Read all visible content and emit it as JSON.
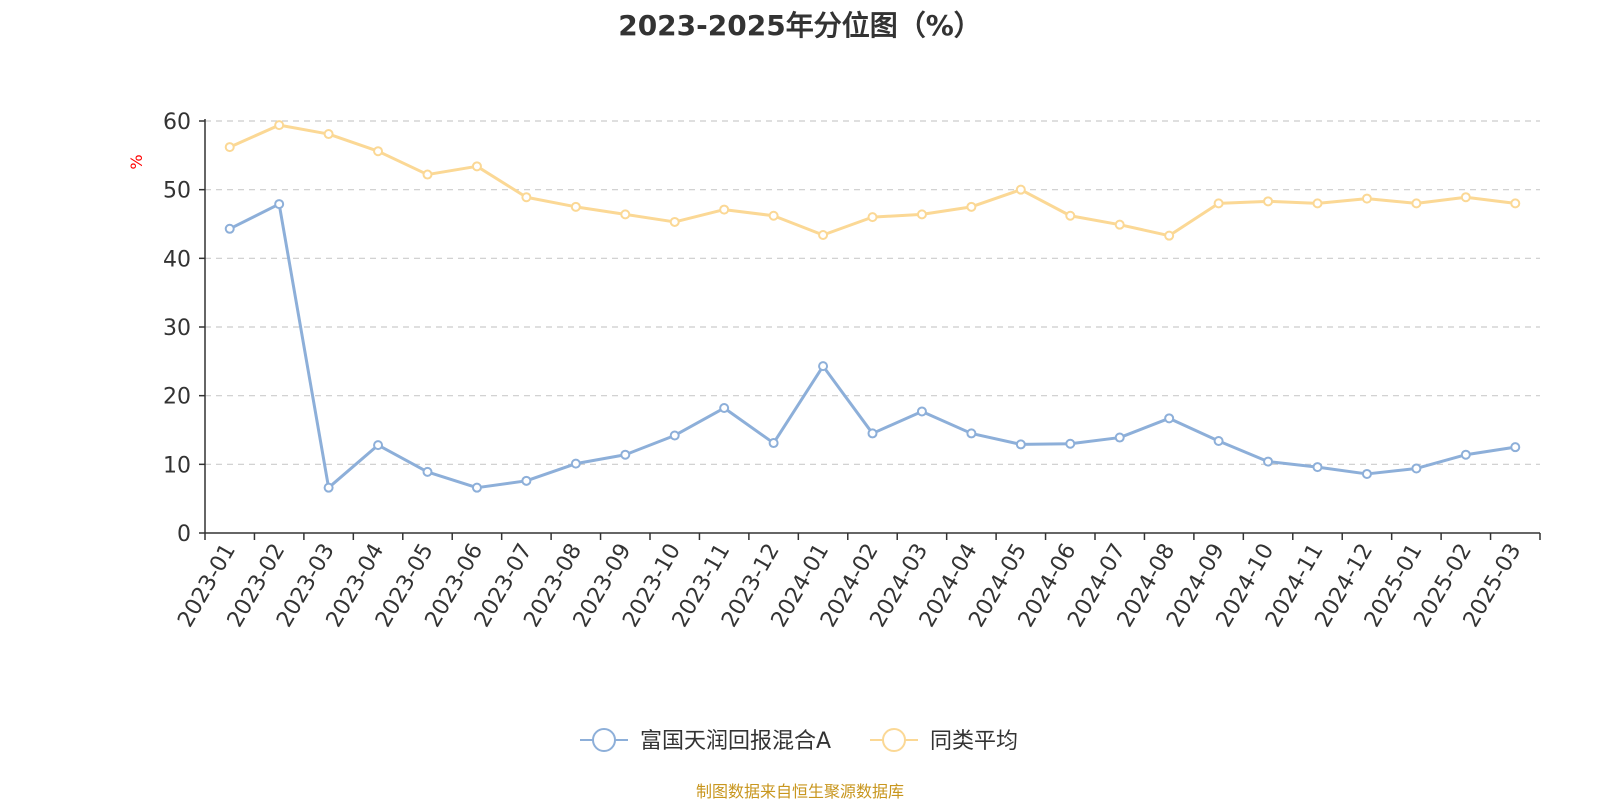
{
  "chart_data": {
    "type": "line",
    "title": "2023-2025年分位图（%）",
    "ylabel": "%",
    "ylim": [
      0,
      60
    ],
    "yticks": [
      "0",
      "10",
      "20",
      "30",
      "40",
      "50",
      "60"
    ],
    "grid": true,
    "legend_position": "bottom",
    "categories": [
      "2023-01",
      "2023-02",
      "2023-03",
      "2023-04",
      "2023-05",
      "2023-06",
      "2023-07",
      "2023-08",
      "2023-09",
      "2023-10",
      "2023-11",
      "2023-12",
      "2024-01",
      "2024-02",
      "2024-03",
      "2024-04",
      "2024-05",
      "2024-06",
      "2024-07",
      "2024-08",
      "2024-09",
      "2024-10",
      "2024-11",
      "2024-12",
      "2025-01",
      "2025-02",
      "2025-03"
    ],
    "series": [
      {
        "name": "富国天润回报混合A",
        "color": "#8dafd9",
        "values": [
          44.3,
          47.9,
          6.6,
          12.8,
          8.9,
          6.6,
          7.6,
          10.1,
          11.4,
          14.2,
          18.2,
          13.1,
          24.3,
          14.5,
          17.7,
          14.5,
          12.9,
          13.0,
          13.9,
          16.7,
          13.4,
          10.4,
          9.6,
          8.6,
          9.4,
          11.4,
          12.5
        ]
      },
      {
        "name": "同类平均",
        "color": "#fbd895",
        "values": [
          56.2,
          59.4,
          58.1,
          55.6,
          52.2,
          53.4,
          48.9,
          47.5,
          46.4,
          45.3,
          47.1,
          46.2,
          43.4,
          46.0,
          46.4,
          47.5,
          50.0,
          46.2,
          44.9,
          43.3,
          48.0,
          48.3,
          48.0,
          48.7,
          48.0,
          48.9,
          48.0
        ]
      }
    ]
  },
  "source": "制图数据来自恒生聚源数据库"
}
